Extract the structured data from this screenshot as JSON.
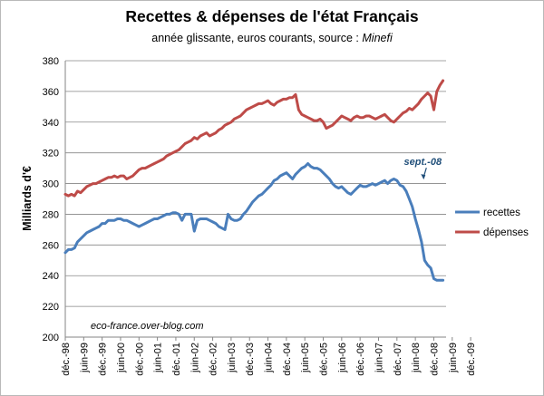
{
  "chart_data": {
    "type": "line",
    "title": "Recettes & dépenses  de l'état Français",
    "subtitle_main": "année glissante, euros courants, source : ",
    "subtitle_source": "Minefi",
    "ylabel": "Milliards d'€",
    "xlabel": "",
    "ylim": [
      200,
      380
    ],
    "yticks": [
      200,
      220,
      240,
      260,
      280,
      300,
      320,
      340,
      360,
      380
    ],
    "ytick_labels": [
      "200",
      "220",
      "240",
      "260",
      "280",
      "300",
      "320",
      "340",
      "360",
      "380"
    ],
    "grid": "horizontal",
    "legend_position": "right",
    "x_labels": [
      "déc.-98",
      "juin-99",
      "déc.-99",
      "juin-00",
      "déc.-00",
      "juin-01",
      "déc.-01",
      "juin-02",
      "déc.-02",
      "juin-03",
      "déc.-03",
      "juin-04",
      "déc.-04",
      "juin-05",
      "déc.-05",
      "juin-06",
      "déc.-06",
      "juin-07",
      "déc.-07",
      "juin-08",
      "déc.-08",
      "juin-09",
      "déc.-09"
    ],
    "x_start": "1998-12",
    "series": [
      {
        "name": "recettes",
        "color": "#4a7ebb",
        "values": [
          255,
          257,
          257,
          258,
          262,
          264,
          266,
          268,
          269,
          270,
          271,
          272,
          274,
          274,
          276,
          276,
          276,
          277,
          277,
          276,
          276,
          275,
          274,
          273,
          272,
          273,
          274,
          275,
          276,
          277,
          277,
          278,
          279,
          280,
          280,
          281,
          281,
          280,
          276,
          280,
          280,
          280,
          269,
          276,
          277,
          277,
          277,
          276,
          275,
          274,
          272,
          271,
          270,
          280,
          277,
          276,
          276,
          277,
          280,
          282,
          285,
          288,
          290,
          292,
          293,
          295,
          297,
          299,
          302,
          303,
          305,
          306,
          307,
          305,
          303,
          306,
          308,
          310,
          311,
          313,
          311,
          310,
          310,
          309,
          307,
          305,
          303,
          300,
          298,
          297,
          298,
          296,
          294,
          293,
          295,
          297,
          299,
          298,
          298,
          299,
          300,
          299,
          300,
          301,
          302,
          300,
          302,
          303,
          302,
          299,
          298,
          295,
          290,
          285,
          277,
          270,
          262,
          250,
          247,
          245,
          238,
          237,
          237,
          237
        ]
      },
      {
        "name": "dépenses",
        "color": "#be4b48",
        "values": [
          293,
          292,
          293,
          292,
          295,
          294,
          296,
          298,
          299,
          300,
          300,
          301,
          302,
          303,
          304,
          304,
          305,
          304,
          305,
          305,
          303,
          304,
          305,
          307,
          309,
          310,
          310,
          311,
          312,
          313,
          314,
          315,
          316,
          318,
          319,
          320,
          321,
          322,
          324,
          326,
          327,
          328,
          330,
          329,
          331,
          332,
          333,
          331,
          332,
          333,
          335,
          336,
          338,
          339,
          340,
          342,
          343,
          344,
          346,
          348,
          349,
          350,
          351,
          352,
          352,
          353,
          354,
          352,
          351,
          353,
          354,
          355,
          355,
          356,
          356,
          358,
          348,
          345,
          344,
          343,
          342,
          341,
          341,
          342,
          340,
          336,
          337,
          338,
          340,
          342,
          344,
          343,
          342,
          341,
          343,
          344,
          343,
          343,
          344,
          344,
          343,
          342,
          343,
          344,
          345,
          343,
          341,
          340,
          342,
          344,
          346,
          347,
          349,
          348,
          350,
          352,
          355,
          357,
          359,
          357,
          348,
          360,
          364,
          367
        ]
      }
    ],
    "annotations": [
      {
        "text": "sept.-08",
        "x": "2008-09",
        "y": 302
      }
    ],
    "watermark": "eco-france.over-blog.com"
  }
}
